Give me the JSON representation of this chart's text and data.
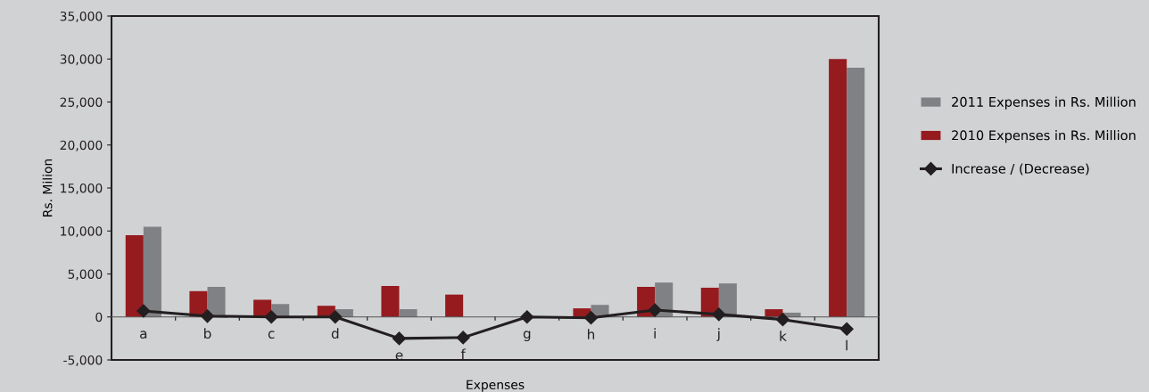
{
  "chart_data": {
    "type": "bar",
    "xlabel": "Expenses",
    "ylabel": "Rs. Milion",
    "categories": [
      "a",
      "b",
      "c",
      "d",
      "e",
      "f",
      "g",
      "h",
      "i",
      "j",
      "k",
      "l"
    ],
    "series": [
      {
        "name": "2010 Expenses in Rs. Million",
        "color": "#951b1f",
        "values": [
          9500,
          3000,
          2000,
          1300,
          3600,
          2600,
          0,
          1000,
          3500,
          3400,
          900,
          30000
        ]
      },
      {
        "name": "2011 Expenses in Rs. Million",
        "color": "#808184",
        "values": [
          10500,
          3500,
          1500,
          900,
          900,
          0,
          0,
          1400,
          4000,
          3900,
          500,
          29000
        ]
      },
      {
        "name": "Increase / (Decrease)",
        "type": "line",
        "color": "#231f20",
        "marker": "diamond",
        "values": [
          700,
          100,
          0,
          0,
          -2500,
          -2400,
          0,
          -100,
          800,
          300,
          -300,
          -1400
        ]
      }
    ],
    "ylim": [
      -5000,
      35000
    ],
    "yticks": [
      {
        "value": -5000,
        "label": "-5,000"
      },
      {
        "value": 0,
        "label": "0"
      },
      {
        "value": 5000,
        "label": "5,000"
      },
      {
        "value": 10000,
        "label": "10,000"
      },
      {
        "value": 15000,
        "label": "15,000"
      },
      {
        "value": 20000,
        "label": "20,000"
      },
      {
        "value": 25000,
        "label": "25,000"
      },
      {
        "value": 30000,
        "label": "30,000"
      },
      {
        "value": 35000,
        "label": "35,000"
      }
    ],
    "grid": false,
    "legend": "right"
  }
}
